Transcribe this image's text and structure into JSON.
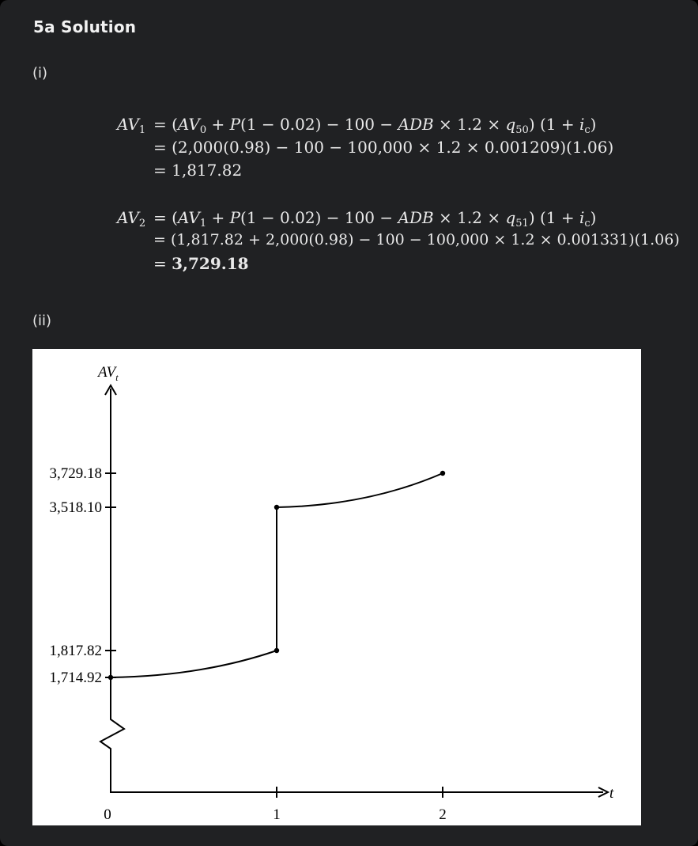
{
  "heading": "5a Solution",
  "part_i_label": "(i)",
  "part_ii_label": "(ii)",
  "equations": {
    "av1": {
      "lhs_name": "AV",
      "lhs_sub": "1",
      "line1": {
        "a": "= (",
        "b": "AV",
        "b_sub": "0",
        "c": " + ",
        "d": "P",
        "e": "(1 − 0.02) − 100 − ",
        "f": "ADB",
        "g": " × 1.2 × ",
        "h": "q",
        "h_sub": "50",
        "i": ") (1 + ",
        "j": "i",
        "j_sub": "c",
        "k": ")"
      },
      "line2": "= (2,000(0.98) − 100 − 100,000 × 1.2 × 0.001209)(1.06)",
      "line3": "= 1,817.82"
    },
    "av2": {
      "lhs_name": "AV",
      "lhs_sub": "2",
      "line1": {
        "a": "= (",
        "b": "AV",
        "b_sub": "1",
        "c": " + ",
        "d": "P",
        "e": "(1 − 0.02) − 100 − ",
        "f": "ADB",
        "g": " × 1.2 × ",
        "h": "q",
        "h_sub": "51",
        "i": ") (1 + ",
        "j": "i",
        "j_sub": "c",
        "k": ")"
      },
      "line2": "= (1,817.82 + 2,000(0.98) − 100 − 100,000 × 1.2 × 0.001331)(1.06)",
      "line3_eq": "= ",
      "line3_val": "3,729.18"
    }
  },
  "figure": {
    "y_axis_label": "AV",
    "y_axis_label_sub": "t",
    "x_axis_label": "t",
    "y_ticks": [
      "3,729.18",
      "3,518.10",
      "1,817.82",
      "1,714.92"
    ],
    "x_ticks": [
      "0",
      "1",
      "2"
    ]
  },
  "chart_data": {
    "type": "line",
    "title": "",
    "xlabel": "t",
    "ylabel": "AV_t",
    "x_ticks": [
      0,
      1,
      2
    ],
    "y_ticks": [
      1714.92,
      1817.82,
      3518.1,
      3729.18
    ],
    "axis_break_on_y": true,
    "series": [
      {
        "segments": [
          {
            "from": [
              0,
              1714.92
            ],
            "to": [
              1,
              1817.82
            ],
            "shape": "convex-curve"
          },
          {
            "from": [
              1,
              1817.82
            ],
            "to": [
              1,
              3518.1
            ],
            "shape": "vertical-jump"
          },
          {
            "from": [
              1,
              3518.1
            ],
            "to": [
              2,
              3729.18
            ],
            "shape": "convex-curve"
          }
        ],
        "points": [
          [
            0,
            1714.92
          ],
          [
            1,
            1817.82
          ],
          [
            1,
            3518.1
          ],
          [
            2,
            3729.18
          ]
        ]
      }
    ]
  }
}
